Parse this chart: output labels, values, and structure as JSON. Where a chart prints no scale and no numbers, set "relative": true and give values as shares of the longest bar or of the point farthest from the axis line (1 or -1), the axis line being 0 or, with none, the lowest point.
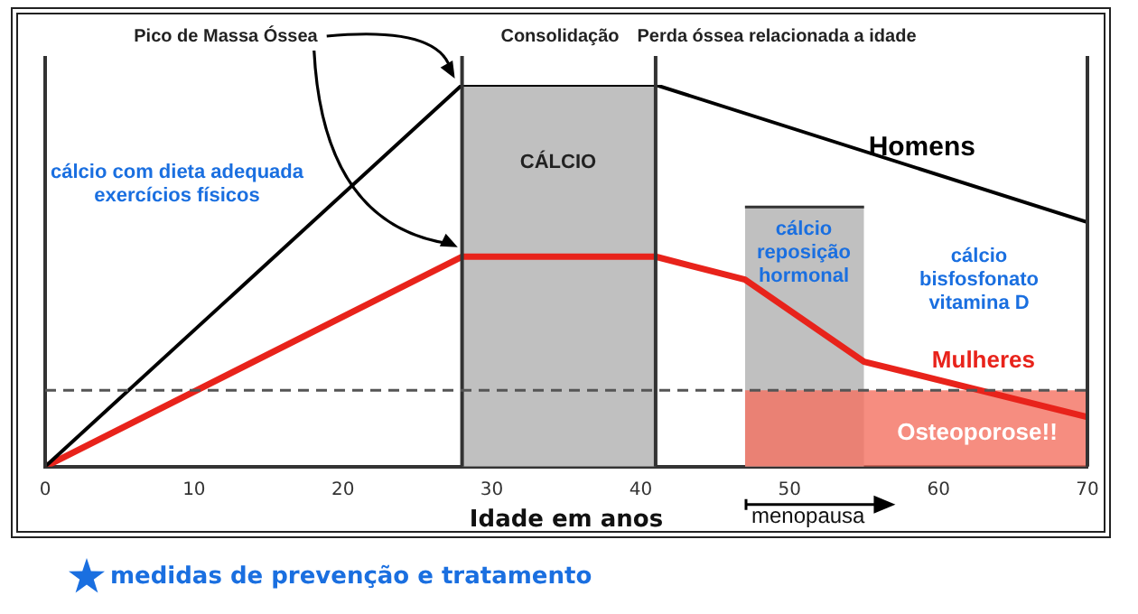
{
  "chart_data": {
    "type": "line",
    "relative": true,
    "xlabel": "Idade em anos",
    "xlim": [
      0,
      70
    ],
    "xticks": [
      0,
      10,
      20,
      30,
      40,
      50,
      60,
      70
    ],
    "grid": false,
    "legend": false,
    "marker": "none",
    "line_style": "solid",
    "series": [
      {
        "type": "area",
        "color": "#c0c0c0",
        "x": [
          28,
          41
        ],
        "values": [
          1,
          1
        ]
      },
      {
        "type": "area",
        "color": "#c0c0c0",
        "x": [
          47,
          55
        ],
        "values": [
          0.68,
          0.68
        ]
      },
      {
        "type": "area",
        "color": "#f47060",
        "x": [
          47,
          70
        ],
        "values": [
          0.2,
          0.2
        ]
      },
      {
        "name": "Homens",
        "color": "#000000",
        "x": [
          0,
          28,
          41,
          70
        ],
        "values": [
          0,
          1,
          1,
          0.64
        ]
      },
      {
        "name": "Mulheres",
        "color": "#e8231b",
        "x": [
          0,
          28,
          41,
          47,
          55,
          70
        ],
        "values": [
          0,
          0.55,
          0.55,
          0.49,
          0.275,
          0.13
        ]
      }
    ],
    "ref_lines": [
      {
        "axis": "x",
        "value": 0,
        "color": "#333333"
      },
      {
        "axis": "x",
        "value": 28,
        "color": "#333333"
      },
      {
        "axis": "x",
        "value": 41,
        "color": "#333333"
      },
      {
        "axis": "x",
        "value": 70,
        "color": "#333333"
      },
      {
        "axis": "y",
        "value": 0.2,
        "color": "#555555",
        "line_style": "dashed"
      }
    ],
    "annotations": [
      "Pico de Massa Óssea",
      "Consolidação",
      "Perda óssea relacionada a idade",
      "CÁLCIO",
      "cálcio com dieta adequada\nexercícios físicos",
      "cálcio\nreposição\nhormonal",
      "cálcio\nbisfosfonato\nvitamina D",
      "Osteoporose!!",
      "menopausa",
      "medidas de prevenção e tratamento"
    ]
  }
}
